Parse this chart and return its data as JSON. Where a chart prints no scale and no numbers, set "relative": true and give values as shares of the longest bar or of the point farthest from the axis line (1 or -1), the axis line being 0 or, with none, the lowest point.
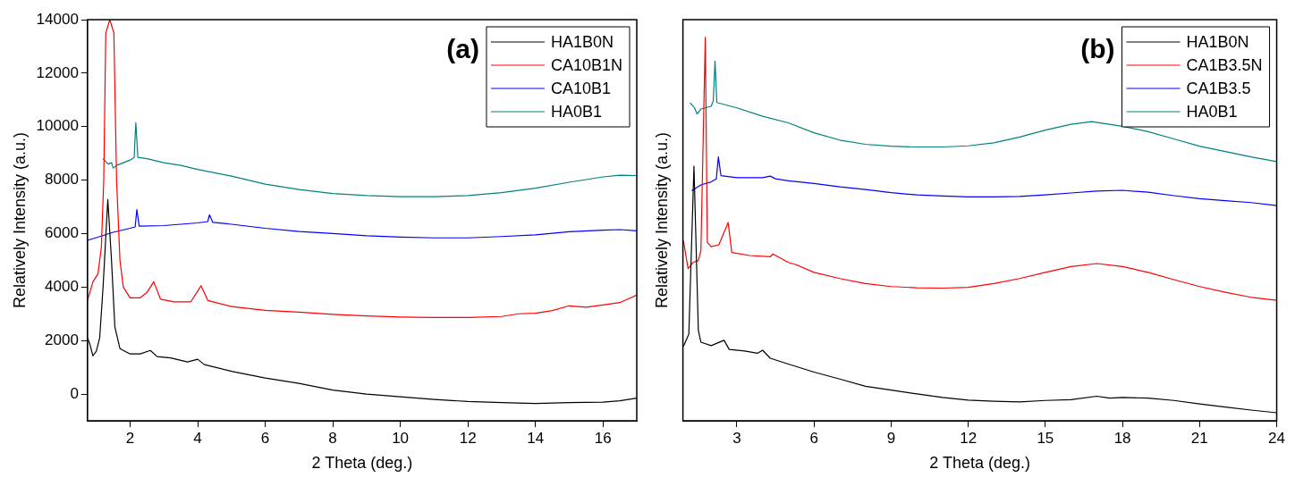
{
  "chart_data": [
    {
      "type": "line",
      "title": "(a)",
      "xlabel": "2 Theta (deg.)",
      "ylabel": "Relatively Intensity (a.u.)",
      "xlim": [
        0.74,
        17
      ],
      "xticks": [
        2,
        4,
        6,
        8,
        10,
        12,
        14,
        16
      ],
      "ylim": [
        -1000,
        14000
      ],
      "yticks": [
        0,
        2000,
        4000,
        6000,
        8000,
        10000,
        12000,
        14000
      ],
      "grid": false,
      "legend": "top right",
      "series": [
        {
          "name": "HA1B0N",
          "color": "#000000",
          "x": [
            0.74,
            0.8,
            0.9,
            1.0,
            1.1,
            1.2,
            1.34,
            1.45,
            1.55,
            1.7,
            2.0,
            2.3,
            2.6,
            2.8,
            3.2,
            3.7,
            4.0,
            4.2,
            5,
            6,
            7,
            8,
            9,
            10,
            11,
            12,
            13,
            14,
            15,
            16,
            16.5,
            17
          ],
          "values": [
            2100,
            1900,
            1430,
            1600,
            2100,
            4000,
            7270,
            5000,
            2500,
            1700,
            1500,
            1500,
            1630,
            1400,
            1350,
            1200,
            1300,
            1100,
            850,
            600,
            400,
            150,
            0,
            -100,
            -200,
            -280,
            -320,
            -350,
            -320,
            -300,
            -250,
            -150
          ]
        },
        {
          "name": "CA10B1N",
          "color": "#ff0000",
          "x": [
            0.74,
            0.9,
            1.05,
            1.15,
            1.22,
            1.28,
            1.4,
            1.52,
            1.6,
            1.7,
            1.8,
            2.0,
            2.3,
            2.5,
            2.7,
            2.9,
            3.3,
            3.8,
            4.1,
            4.3,
            5,
            6,
            7,
            8,
            9,
            10,
            11,
            12,
            13,
            13.5,
            14,
            14.5,
            15,
            15.5,
            16,
            16.5,
            17
          ],
          "values": [
            3500,
            4200,
            4500,
            5500,
            8000,
            13500,
            14000,
            13500,
            8000,
            5000,
            4000,
            3600,
            3600,
            3800,
            4200,
            3550,
            3450,
            3450,
            4050,
            3500,
            3270,
            3130,
            3060,
            2980,
            2920,
            2880,
            2860,
            2860,
            2900,
            3000,
            3020,
            3120,
            3300,
            3250,
            3330,
            3420,
            3700
          ]
        },
        {
          "name": "CA10B1",
          "color": "#0000ff",
          "x": [
            0.74,
            1,
            1.5,
            2,
            2.15,
            2.2,
            2.27,
            3,
            4,
            4.3,
            4.35,
            4.45,
            5,
            6,
            7,
            8,
            9,
            10,
            11,
            12,
            13,
            14,
            15,
            16,
            16.5,
            17
          ],
          "values": [
            5750,
            5850,
            6050,
            6200,
            6250,
            6900,
            6280,
            6300,
            6400,
            6450,
            6700,
            6420,
            6350,
            6200,
            6080,
            6000,
            5920,
            5870,
            5840,
            5840,
            5890,
            5950,
            6070,
            6130,
            6150,
            6100
          ]
        },
        {
          "name": "HA0B1",
          "color": "#008080",
          "x": [
            1.2,
            1.35,
            1.45,
            1.5,
            1.6,
            2.0,
            2.12,
            2.17,
            2.23,
            2.5,
            3,
            3.5,
            4,
            5,
            6,
            7,
            8,
            9,
            10,
            11,
            12,
            13,
            14,
            15,
            16,
            16.5,
            17
          ],
          "values": [
            8800,
            8600,
            8650,
            8450,
            8550,
            8750,
            8850,
            10150,
            8850,
            8800,
            8650,
            8550,
            8400,
            8150,
            7850,
            7650,
            7500,
            7420,
            7380,
            7380,
            7420,
            7530,
            7700,
            7920,
            8120,
            8180,
            8170
          ]
        }
      ]
    },
    {
      "type": "line",
      "title": "(b)",
      "xlabel": "2 Theta (deg.)",
      "ylabel": "Relatively Intensity (a.u.)",
      "relative": true,
      "tick_labels": "x",
      "xlim": [
        0.9,
        24
      ],
      "xticks": [
        3,
        6,
        9,
        12,
        15,
        18,
        21,
        24
      ],
      "grid": false,
      "legend": "top right",
      "series": [
        {
          "name": "HA1B0N",
          "color": "#000000",
          "x": [
            0.92,
            1.13,
            1.33,
            1.5,
            1.6,
            2.0,
            2.5,
            2.7,
            3.3,
            3.8,
            4.0,
            4.3,
            5,
            6,
            7,
            8,
            9,
            10,
            11,
            12,
            13,
            14,
            15,
            16,
            17,
            17.5,
            18,
            19,
            20,
            21,
            22,
            23,
            24
          ],
          "values": [
            0.194,
            0.226,
            0.664,
            0.236,
            0.205,
            0.196,
            0.21,
            0.186,
            0.182,
            0.176,
            0.184,
            0.163,
            0.148,
            0.127,
            0.109,
            0.09,
            0.08,
            0.07,
            0.061,
            0.054,
            0.051,
            0.049,
            0.053,
            0.055,
            0.064,
            0.059,
            0.061,
            0.059,
            0.053,
            0.044,
            0.036,
            0.028,
            0.021
          ]
        },
        {
          "name": "CA1B3.5N",
          "color": "#ff0000",
          "x": [
            0.92,
            1.1,
            1.3,
            1.5,
            1.6,
            1.77,
            1.85,
            2.0,
            2.3,
            2.66,
            2.8,
            3.5,
            4.3,
            4.4,
            5,
            5.3,
            6,
            7,
            8,
            9,
            10,
            11,
            12,
            13,
            14,
            15,
            16,
            17,
            18,
            19,
            20,
            21,
            22,
            23,
            24
          ],
          "values": [
            0.47,
            0.397,
            0.413,
            0.418,
            0.444,
            1,
            0.465,
            0.454,
            0.459,
            0.517,
            0.439,
            0.431,
            0.428,
            0.435,
            0.413,
            0.407,
            0.387,
            0.371,
            0.358,
            0.35,
            0.347,
            0.346,
            0.348,
            0.358,
            0.371,
            0.387,
            0.402,
            0.41,
            0.402,
            0.387,
            0.368,
            0.35,
            0.335,
            0.322,
            0.314
          ]
        },
        {
          "name": "CA1B3.5",
          "color": "#0000ff",
          "x": [
            1.24,
            1.6,
            2.0,
            2.2,
            2.28,
            2.38,
            3,
            4,
            4.3,
            4.5,
            5,
            6,
            7,
            8,
            9,
            10,
            11,
            12,
            13,
            14,
            15,
            16,
            17,
            18,
            19,
            20,
            21,
            22,
            23,
            24
          ],
          "values": [
            0.6,
            0.615,
            0.623,
            0.631,
            0.688,
            0.639,
            0.634,
            0.634,
            0.638,
            0.631,
            0.626,
            0.619,
            0.61,
            0.603,
            0.595,
            0.589,
            0.586,
            0.584,
            0.584,
            0.585,
            0.589,
            0.594,
            0.599,
            0.601,
            0.596,
            0.587,
            0.579,
            0.574,
            0.569,
            0.561
          ]
        },
        {
          "name": "HA0B1",
          "color": "#008080",
          "x": [
            1.18,
            1.35,
            1.45,
            1.6,
            2.0,
            2.08,
            2.15,
            2.22,
            3,
            4,
            5,
            6,
            7,
            8,
            9,
            10,
            11,
            12,
            13,
            14,
            15,
            16,
            16.8,
            18,
            19,
            20,
            21,
            22,
            23,
            24
          ],
          "values": [
            0.829,
            0.816,
            0.8,
            0.813,
            0.82,
            0.834,
            0.938,
            0.83,
            0.816,
            0.794,
            0.777,
            0.751,
            0.732,
            0.721,
            0.716,
            0.714,
            0.714,
            0.717,
            0.725,
            0.74,
            0.758,
            0.773,
            0.78,
            0.768,
            0.754,
            0.735,
            0.716,
            0.702,
            0.688,
            0.676
          ]
        }
      ]
    }
  ]
}
